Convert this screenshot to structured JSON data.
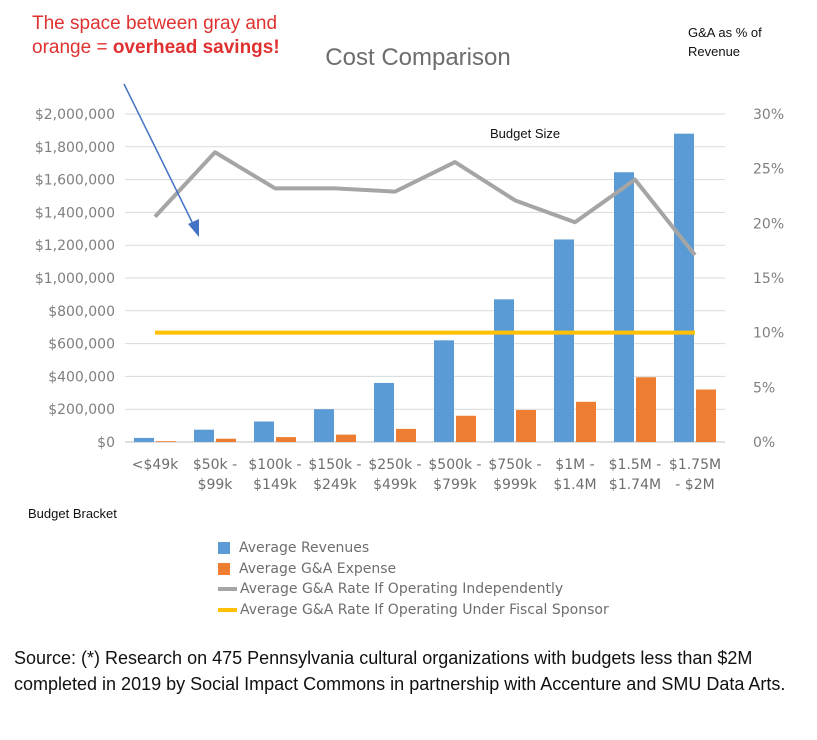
{
  "annotation": {
    "prefix": "The space between gray and orange = ",
    "bold": "overhead savings!"
  },
  "right_axis_label": "G&A as % of Revenue",
  "budget_size_label": "Budget Size",
  "budget_bracket_label": "Budget Bracket",
  "source_text": "Source: (*) Research on 475 Pennsylvania cultural organizations with budgets less than $2M completed in 2019 by Social Impact Commons in partnership with Accenture and SMU Data Arts.",
  "colors": {
    "revenues": "#5b9bd5",
    "expense": "#ed7d31",
    "independent": "#a5a5a5",
    "sponsor": "#ffc000",
    "annotation": "#e03131",
    "arrow": "#4472c4"
  },
  "chart_data": {
    "type": "bar",
    "title": "Cost Comparison",
    "categories": [
      [
        "<$49k",
        ""
      ],
      [
        "$50k -",
        "$99k"
      ],
      [
        "$100k -",
        "$149k"
      ],
      [
        "$150k -",
        "$249k"
      ],
      [
        "$250k -",
        "$499k"
      ],
      [
        "$500k -",
        "$799k"
      ],
      [
        "$750k -",
        "$999k"
      ],
      [
        "$1M -",
        "$1.4M"
      ],
      [
        "$1.5M -",
        "$1.74M"
      ],
      [
        "$1.75M",
        "- $2M"
      ]
    ],
    "series": [
      {
        "name": "Average Revenues",
        "type": "bar",
        "axis": "left",
        "values": [
          25000,
          75000,
          125000,
          200000,
          360000,
          620000,
          870000,
          1235000,
          1645000,
          1880000
        ]
      },
      {
        "name": "Average G&A Expense",
        "type": "bar",
        "axis": "left",
        "values": [
          5000,
          20000,
          30000,
          45000,
          80000,
          160000,
          195000,
          245000,
          395000,
          320000
        ]
      },
      {
        "name": "Average G&A Rate If Operating Independently",
        "type": "line",
        "axis": "right",
        "values": [
          20.6,
          26.5,
          23.2,
          23.2,
          22.9,
          25.6,
          22.1,
          20.1,
          24.0,
          17.1
        ]
      },
      {
        "name": "Average G&A Rate If Operating Under Fiscal Sponsor",
        "type": "line",
        "axis": "right",
        "values": [
          10,
          10,
          10,
          10,
          10,
          10,
          10,
          10,
          10,
          10
        ]
      }
    ],
    "y_left": {
      "min": 0,
      "max": 2000000,
      "step": 200000,
      "ticks": [
        "$0",
        "$200,000",
        "$400,000",
        "$600,000",
        "$800,000",
        "$1,000,000",
        "$1,200,000",
        "$1,400,000",
        "$1,600,000",
        "$1,800,000",
        "$2,000,000"
      ]
    },
    "y_right": {
      "min": 0,
      "max": 30,
      "step": 5,
      "ticks": [
        "0%",
        "5%",
        "10%",
        "15%",
        "20%",
        "25%",
        "30%"
      ]
    },
    "grid": true,
    "legend_position": "bottom"
  }
}
